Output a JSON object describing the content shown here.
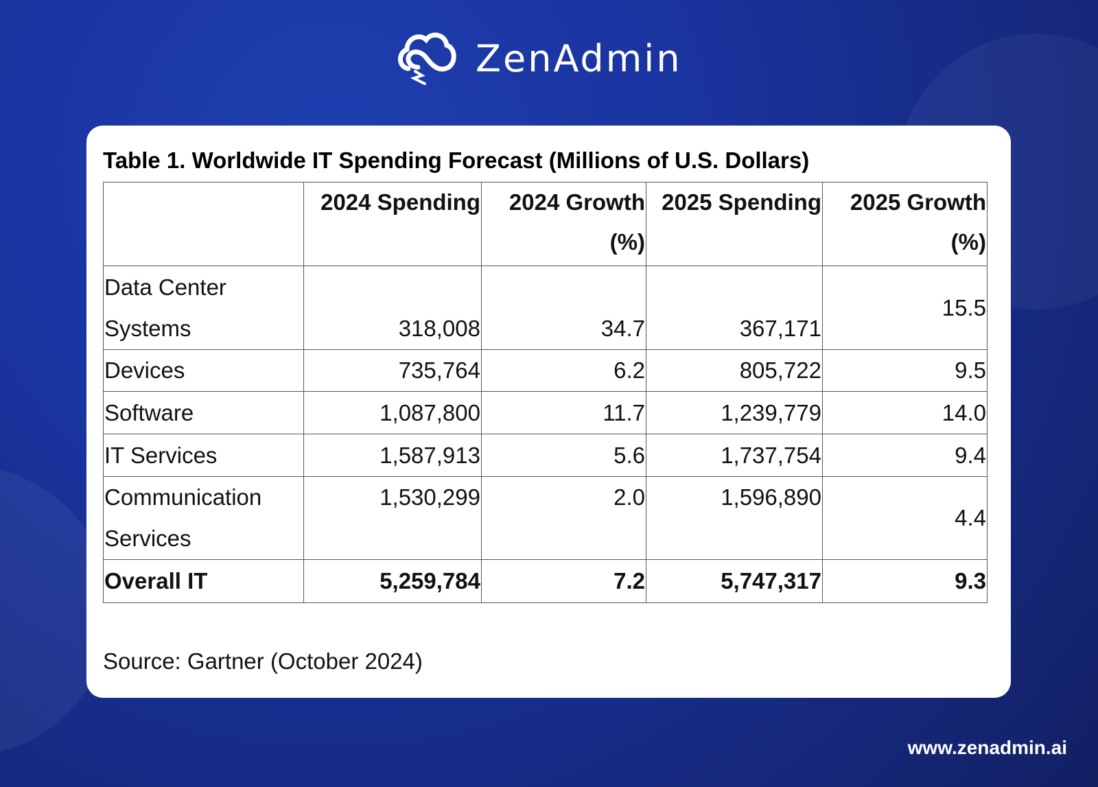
{
  "brand": {
    "name": "ZenAdmin",
    "logo_icon": "cloud-lightning-icon",
    "website": "www.zenadmin.ai"
  },
  "colors": {
    "background": "#1a34a0",
    "card": "#ffffff"
  },
  "table": {
    "title": "Table 1. Worldwide IT Spending Forecast (Millions of U.S. Dollars)",
    "headers": [
      "",
      "2024 Spending",
      "2024 Growth (%)",
      "2025 Spending",
      "2025 Growth (%)"
    ],
    "rows": [
      [
        "Data Center Systems",
        "318,008",
        "34.7",
        "367,171",
        "15.5"
      ],
      [
        "Devices",
        "735,764",
        "6.2",
        "805,722",
        "9.5"
      ],
      [
        "Software",
        "1,087,800",
        "11.7",
        "1,239,779",
        "14.0"
      ],
      [
        "IT Services",
        "1,587,913",
        "5.6",
        "1,737,754",
        "9.4"
      ],
      [
        "Communication Services",
        "1,530,299",
        "2.0",
        "1,596,890",
        "4.4"
      ],
      [
        "Overall IT",
        "5,259,784",
        "7.2",
        "5,747,317",
        "9.3"
      ]
    ],
    "source": "Source: Gartner (October 2024)"
  }
}
